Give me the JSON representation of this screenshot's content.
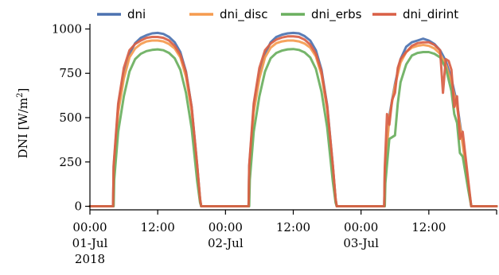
{
  "chart_data": {
    "type": "line",
    "title": "",
    "ylabel": "DNI [W/m",
    "ylabel_sup": "2",
    "ylabel_close": "]",
    "xlabel": "",
    "ylim": [
      -20,
      1020
    ],
    "xlim": [
      0,
      72
    ],
    "y_ticks": [
      {
        "value": 0,
        "label": "0"
      },
      {
        "value": 250,
        "label": "250"
      },
      {
        "value": 500,
        "label": "500"
      },
      {
        "value": 750,
        "label": "750"
      },
      {
        "value": 1000,
        "label": "1000"
      }
    ],
    "x_ticks": [
      {
        "value": 0,
        "lines": [
          "00:00",
          "01-Jul",
          "2018"
        ]
      },
      {
        "value": 12,
        "lines": [
          "12:00"
        ]
      },
      {
        "value": 24,
        "lines": [
          "00:00",
          "02-Jul"
        ]
      },
      {
        "value": 36,
        "lines": [
          "12:00"
        ]
      },
      {
        "value": 48,
        "lines": [
          "00:00",
          "03-Jul"
        ]
      },
      {
        "value": 60,
        "lines": [
          "12:00"
        ]
      },
      {
        "value": 72,
        "lines": []
      }
    ],
    "x_unit": "hours since 2018-07-01 00:00",
    "legend_position": "top",
    "series": [
      {
        "name": "dni",
        "color": "#4C72B0",
        "points": [
          [
            0,
            0
          ],
          [
            4.1,
            0
          ],
          [
            4.2,
            220
          ],
          [
            5,
            560
          ],
          [
            6,
            740
          ],
          [
            7,
            860
          ],
          [
            8,
            920
          ],
          [
            9,
            950
          ],
          [
            10,
            965
          ],
          [
            11,
            975
          ],
          [
            12,
            978
          ],
          [
            13,
            972
          ],
          [
            14,
            955
          ],
          [
            15,
            925
          ],
          [
            16,
            870
          ],
          [
            17,
            760
          ],
          [
            18,
            560
          ],
          [
            19,
            230
          ],
          [
            19.5,
            40
          ],
          [
            19.7,
            0
          ],
          [
            24,
            0
          ],
          [
            28.1,
            0
          ],
          [
            28.2,
            220
          ],
          [
            29,
            560
          ],
          [
            30,
            740
          ],
          [
            31,
            860
          ],
          [
            32,
            925
          ],
          [
            33,
            955
          ],
          [
            34,
            968
          ],
          [
            35,
            975
          ],
          [
            36,
            978
          ],
          [
            37,
            975
          ],
          [
            38,
            960
          ],
          [
            39,
            935
          ],
          [
            40,
            880
          ],
          [
            41,
            770
          ],
          [
            42,
            570
          ],
          [
            43,
            230
          ],
          [
            43.5,
            40
          ],
          [
            43.7,
            0
          ],
          [
            48,
            0
          ],
          [
            52.1,
            0
          ],
          [
            52.2,
            200
          ],
          [
            53,
            510
          ],
          [
            54,
            690
          ],
          [
            55,
            830
          ],
          [
            56,
            900
          ],
          [
            57,
            925
          ],
          [
            58,
            935
          ],
          [
            59,
            945
          ],
          [
            60,
            935
          ],
          [
            61,
            915
          ],
          [
            62,
            880
          ],
          [
            63,
            820
          ],
          [
            64,
            720
          ],
          [
            65,
            580
          ],
          [
            66,
            360
          ],
          [
            67,
            120
          ],
          [
            67.5,
            0
          ],
          [
            72,
            0
          ]
        ]
      },
      {
        "name": "dni_disc",
        "color": "#F59B4F",
        "points": [
          [
            0,
            0
          ],
          [
            4.1,
            0
          ],
          [
            4.2,
            200
          ],
          [
            5,
            530
          ],
          [
            6,
            720
          ],
          [
            7,
            840
          ],
          [
            8,
            890
          ],
          [
            9,
            915
          ],
          [
            10,
            930
          ],
          [
            11,
            935
          ],
          [
            12,
            935
          ],
          [
            13,
            930
          ],
          [
            14,
            915
          ],
          [
            15,
            890
          ],
          [
            16,
            840
          ],
          [
            17,
            730
          ],
          [
            18,
            540
          ],
          [
            19,
            220
          ],
          [
            19.5,
            40
          ],
          [
            19.7,
            0
          ],
          [
            24,
            0
          ],
          [
            28.1,
            0
          ],
          [
            28.2,
            200
          ],
          [
            29,
            530
          ],
          [
            30,
            720
          ],
          [
            31,
            840
          ],
          [
            32,
            895
          ],
          [
            33,
            920
          ],
          [
            34,
            930
          ],
          [
            35,
            935
          ],
          [
            36,
            935
          ],
          [
            37,
            930
          ],
          [
            38,
            918
          ],
          [
            39,
            895
          ],
          [
            40,
            845
          ],
          [
            41,
            740
          ],
          [
            42,
            545
          ],
          [
            43,
            220
          ],
          [
            43.5,
            40
          ],
          [
            43.7,
            0
          ],
          [
            48,
            0
          ],
          [
            52.1,
            0
          ],
          [
            52.2,
            190
          ],
          [
            53,
            500
          ],
          [
            54,
            680
          ],
          [
            55,
            810
          ],
          [
            56,
            870
          ],
          [
            57,
            895
          ],
          [
            58,
            905
          ],
          [
            59,
            910
          ],
          [
            60,
            905
          ],
          [
            61,
            890
          ],
          [
            62,
            860
          ],
          [
            63,
            800
          ],
          [
            64,
            700
          ],
          [
            65,
            560
          ],
          [
            66,
            350
          ],
          [
            67,
            120
          ],
          [
            67.5,
            0
          ],
          [
            72,
            0
          ]
        ]
      },
      {
        "name": "dni_erbs",
        "color": "#6AAF5E",
        "points": [
          [
            0,
            0
          ],
          [
            4.2,
            0
          ],
          [
            4.3,
            150
          ],
          [
            5,
            420
          ],
          [
            6,
            620
          ],
          [
            7,
            760
          ],
          [
            8,
            830
          ],
          [
            9,
            860
          ],
          [
            10,
            875
          ],
          [
            11,
            882
          ],
          [
            12,
            885
          ],
          [
            13,
            880
          ],
          [
            14,
            865
          ],
          [
            15,
            835
          ],
          [
            16,
            770
          ],
          [
            17,
            640
          ],
          [
            18,
            440
          ],
          [
            19,
            140
          ],
          [
            19.5,
            20
          ],
          [
            19.7,
            0
          ],
          [
            24,
            0
          ],
          [
            28.2,
            0
          ],
          [
            28.3,
            150
          ],
          [
            29,
            420
          ],
          [
            30,
            620
          ],
          [
            31,
            760
          ],
          [
            32,
            835
          ],
          [
            33,
            865
          ],
          [
            34,
            878
          ],
          [
            35,
            885
          ],
          [
            36,
            887
          ],
          [
            37,
            882
          ],
          [
            38,
            868
          ],
          [
            39,
            840
          ],
          [
            40,
            775
          ],
          [
            41,
            645
          ],
          [
            42,
            445
          ],
          [
            43,
            140
          ],
          [
            43.5,
            20
          ],
          [
            43.7,
            0
          ],
          [
            48,
            0
          ],
          [
            52.2,
            0
          ],
          [
            52.3,
            130
          ],
          [
            53,
            380
          ],
          [
            54,
            400
          ],
          [
            54.5,
            580
          ],
          [
            55,
            700
          ],
          [
            56,
            800
          ],
          [
            57,
            850
          ],
          [
            58,
            865
          ],
          [
            59,
            870
          ],
          [
            60,
            870
          ],
          [
            61,
            860
          ],
          [
            62,
            840
          ],
          [
            63,
            780
          ],
          [
            64,
            650
          ],
          [
            64.5,
            520
          ],
          [
            65,
            470
          ],
          [
            65.5,
            300
          ],
          [
            66,
            280
          ],
          [
            67,
            90
          ],
          [
            67.5,
            0
          ],
          [
            72,
            0
          ]
        ]
      },
      {
        "name": "dni_dirint",
        "color": "#D95F45",
        "points": [
          [
            0,
            0
          ],
          [
            4.1,
            0
          ],
          [
            4.2,
            230
          ],
          [
            5,
            580
          ],
          [
            6,
            780
          ],
          [
            7,
            880
          ],
          [
            8,
            915
          ],
          [
            9,
            935
          ],
          [
            10,
            950
          ],
          [
            11,
            955
          ],
          [
            12,
            955
          ],
          [
            13,
            950
          ],
          [
            14,
            935
          ],
          [
            15,
            905
          ],
          [
            16,
            855
          ],
          [
            17,
            755
          ],
          [
            18,
            560
          ],
          [
            19,
            230
          ],
          [
            19.5,
            40
          ],
          [
            19.7,
            0
          ],
          [
            24,
            0
          ],
          [
            28.1,
            0
          ],
          [
            28.2,
            230
          ],
          [
            29,
            580
          ],
          [
            30,
            780
          ],
          [
            31,
            880
          ],
          [
            32,
            918
          ],
          [
            33,
            940
          ],
          [
            34,
            952
          ],
          [
            35,
            958
          ],
          [
            36,
            958
          ],
          [
            37,
            955
          ],
          [
            38,
            940
          ],
          [
            39,
            912
          ],
          [
            40,
            860
          ],
          [
            41,
            760
          ],
          [
            42,
            565
          ],
          [
            43,
            230
          ],
          [
            43.5,
            40
          ],
          [
            43.7,
            0
          ],
          [
            48,
            0
          ],
          [
            52.1,
            0
          ],
          [
            52.2,
            220
          ],
          [
            52.6,
            520
          ],
          [
            53,
            460
          ],
          [
            53.5,
            600
          ],
          [
            54,
            640
          ],
          [
            54.5,
            780
          ],
          [
            55,
            830
          ],
          [
            56,
            870
          ],
          [
            57,
            905
          ],
          [
            58,
            920
          ],
          [
            59,
            925
          ],
          [
            60,
            925
          ],
          [
            61,
            910
          ],
          [
            62,
            880
          ],
          [
            62.5,
            640
          ],
          [
            63,
            830
          ],
          [
            63.5,
            820
          ],
          [
            64,
            770
          ],
          [
            64.5,
            560
          ],
          [
            65,
            620
          ],
          [
            65.5,
            380
          ],
          [
            66,
            420
          ],
          [
            67,
            140
          ],
          [
            67.5,
            0
          ],
          [
            72,
            0
          ]
        ]
      }
    ]
  }
}
